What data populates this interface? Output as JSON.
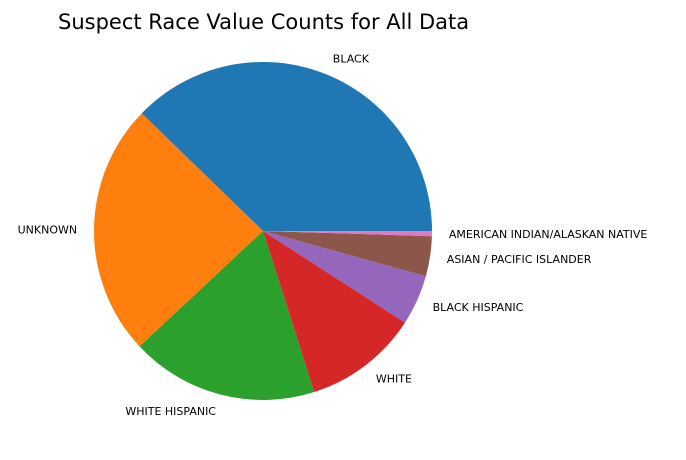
{
  "chart_data": {
    "type": "pie",
    "title": "Suspect Race Value Counts for All Data",
    "start_angle_deg": 0,
    "direction": "counterclockwise",
    "slices": [
      {
        "label": "BLACK",
        "value": 38.5,
        "color": "#1f77b4"
      },
      {
        "label": "UNKNOWN",
        "value": 24.7,
        "color": "#ff7f0e"
      },
      {
        "label": "WHITE HISPANIC",
        "value": 18.3,
        "color": "#2ca02c"
      },
      {
        "label": "WHITE",
        "value": 11.2,
        "color": "#d62728"
      },
      {
        "label": "BLACK HISPANIC",
        "value": 4.9,
        "color": "#9467bd"
      },
      {
        "label": "ASIAN / PACIFIC ISLANDER",
        "value": 3.9,
        "color": "#8c564b"
      },
      {
        "label": "AMERICAN INDIAN/ALASKAN NATIVE",
        "value": 0.5,
        "color": "#e377c2"
      }
    ]
  }
}
